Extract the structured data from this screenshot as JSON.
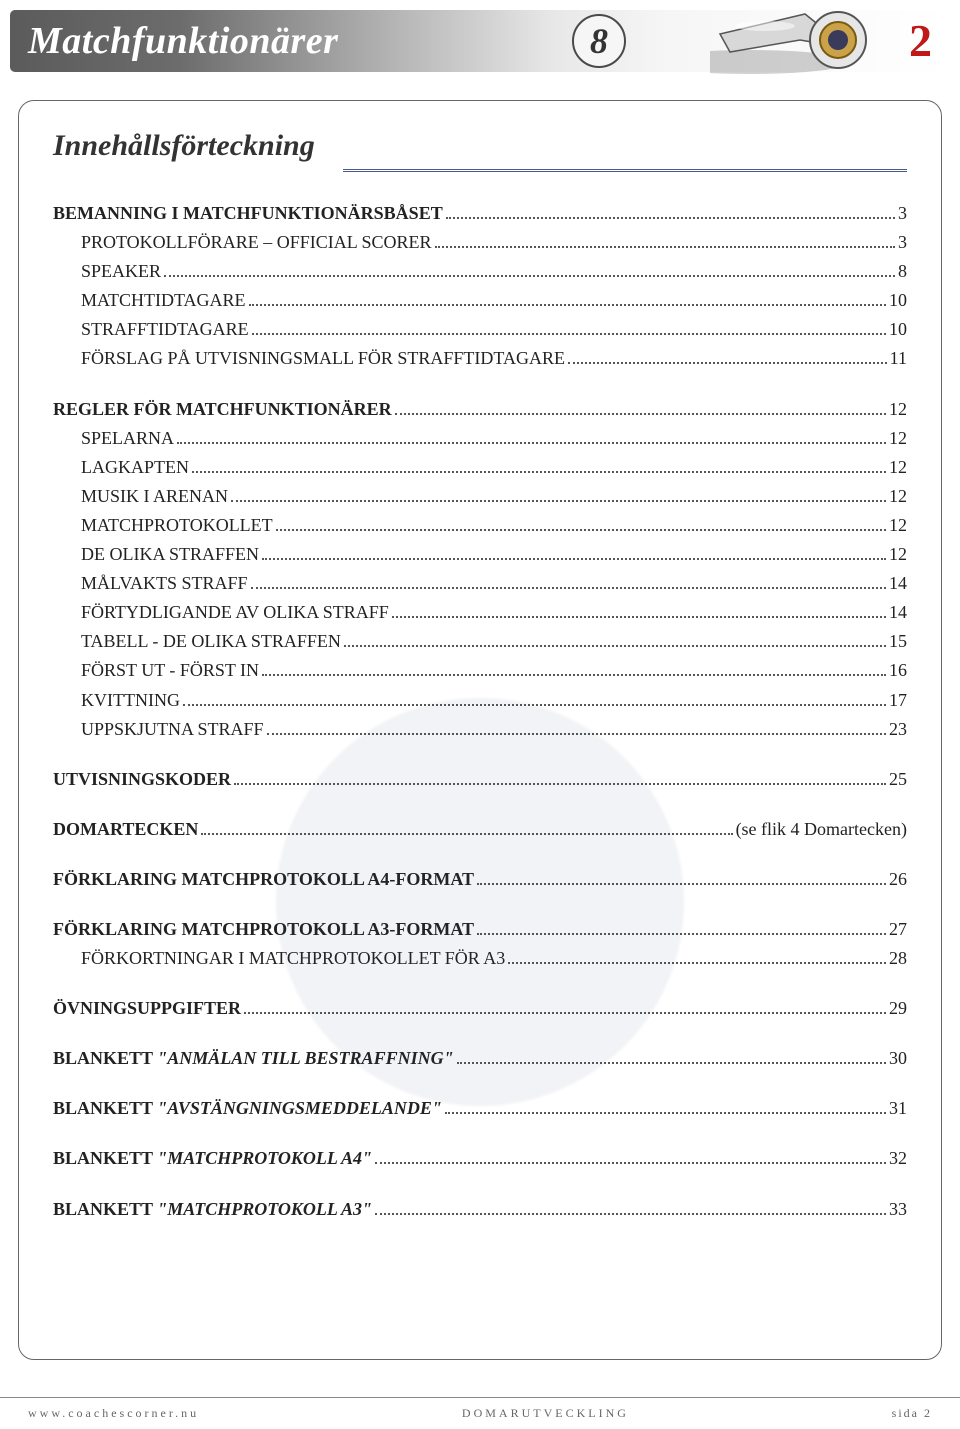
{
  "header": {
    "title": "Matchfunktionärer",
    "circle_number": "8",
    "page_badge": "2",
    "accent_color": "#c01818",
    "bar_gradient_from": "#5b5b5b",
    "bar_gradient_to": "#ffffff"
  },
  "toc": {
    "heading": "Innehållsförteckning",
    "entries": [
      {
        "label": "BEMANNING I MATCHFUNKTIONÄRSBÅSET",
        "page": "3",
        "bold": true,
        "indent": false
      },
      {
        "label": "PROTOKOLLFÖRARE – OFFICIAL SCORER",
        "page": "3",
        "bold": false,
        "indent": true
      },
      {
        "label": "SPEAKER",
        "page": "8",
        "bold": false,
        "indent": true
      },
      {
        "label": "MATCHTIDTAGARE",
        "page": "10",
        "bold": false,
        "indent": true
      },
      {
        "label": "STRAFFTIDTAGARE",
        "page": "10",
        "bold": false,
        "indent": true
      },
      {
        "label": "FÖRSLAG PÅ UTVISNINGSMALL FÖR STRAFFTIDTAGARE",
        "page": " 11",
        "bold": false,
        "indent": true
      },
      {
        "gap": true
      },
      {
        "label": "REGLER FÖR MATCHFUNKTIONÄRER",
        "page": "12",
        "bold": true,
        "indent": false
      },
      {
        "label": "SPELARNA",
        "page": "12",
        "bold": false,
        "indent": true
      },
      {
        "label": "LAGKAPTEN",
        "page": "12",
        "bold": false,
        "indent": true
      },
      {
        "label": "MUSIK I ARENAN",
        "page": "12",
        "bold": false,
        "indent": true
      },
      {
        "label": "MATCHPROTOKOLLET",
        "page": "12",
        "bold": false,
        "indent": true
      },
      {
        "label": "DE OLIKA STRAFFEN",
        "page": "12",
        "bold": false,
        "indent": true
      },
      {
        "label": "MÅLVAKTS STRAFF",
        "page": "14",
        "bold": false,
        "indent": true
      },
      {
        "label": "FÖRTYDLIGANDE AV OLIKA STRAFF",
        "page": "14",
        "bold": false,
        "indent": true
      },
      {
        "label": "TABELL - DE OLIKA STRAFFEN",
        "page": "15",
        "bold": false,
        "indent": true
      },
      {
        "label": "FÖRST UT - FÖRST IN",
        "page": "16",
        "bold": false,
        "indent": true
      },
      {
        "label": "KVITTNING",
        "page": "17",
        "bold": false,
        "indent": true
      },
      {
        "label": "UPPSKJUTNA STRAFF",
        "page": "23",
        "bold": false,
        "indent": true
      },
      {
        "gap": true
      },
      {
        "label": "UTVISNINGSKODER",
        "page": "25",
        "bold": true,
        "indent": false
      },
      {
        "gap": true
      },
      {
        "label": "DOMARTECKEN",
        "page": "(se flik 4 Domartecken)",
        "bold": true,
        "indent": false
      },
      {
        "gap": true
      },
      {
        "label": "FÖRKLARING MATCHPROTOKOLL A4-FORMAT",
        "page": "26",
        "bold": true,
        "indent": false
      },
      {
        "gap": true
      },
      {
        "label": "FÖRKLARING MATCHPROTOKOLL A3-FORMAT",
        "page": "27",
        "bold": true,
        "indent": false
      },
      {
        "label": "FÖRKORTNINGAR I MATCHPROTOKOLLET FÖR A3",
        "page": "28",
        "bold": false,
        "indent": true
      },
      {
        "gap": true
      },
      {
        "label": "ÖVNINGSUPPGIFTER",
        "page": "29",
        "bold": true,
        "indent": false
      },
      {
        "gap": true
      },
      {
        "lead": "BLANKETT ",
        "ital": "\"ANMÄLAN TILL BESTRAFFNING\"",
        "page": "30",
        "bold": true,
        "indent": false,
        "composite": true
      },
      {
        "gap": true
      },
      {
        "lead": "BLANKETT ",
        "ital": "\"AVSTÄNGNINGSMEDDELANDE\"",
        "page": "31",
        "bold": true,
        "indent": false,
        "composite": true
      },
      {
        "gap": true
      },
      {
        "lead": "BLANKETT ",
        "ital": "\"MATCHPROTOKOLL A4\"",
        "page": "32",
        "bold": true,
        "indent": false,
        "composite": true
      },
      {
        "gap": true
      },
      {
        "lead": "BLANKETT ",
        "ital": "\"MATCHPROTOKOLL A3\"",
        "page": "33",
        "bold": true,
        "indent": false,
        "composite": true
      }
    ]
  },
  "footer": {
    "left": "www.coachescorner.nu",
    "center": "DOMARUTVECKLING",
    "right": "sida 2"
  },
  "watermark": {
    "color": "#2a3a6a",
    "opacity": 0.06
  }
}
